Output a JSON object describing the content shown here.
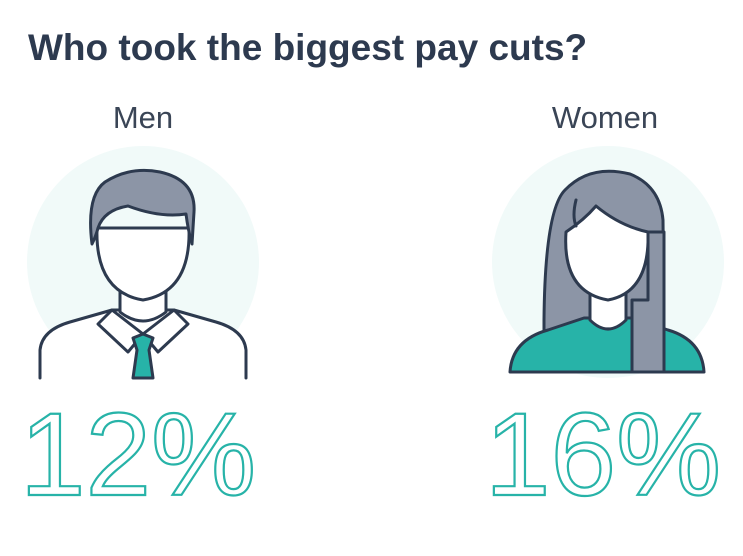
{
  "title": "Who took the biggest pay cuts?",
  "groups": [
    {
      "label": "Men",
      "value": "12%"
    },
    {
      "label": "Women",
      "value": "16%"
    }
  ]
}
